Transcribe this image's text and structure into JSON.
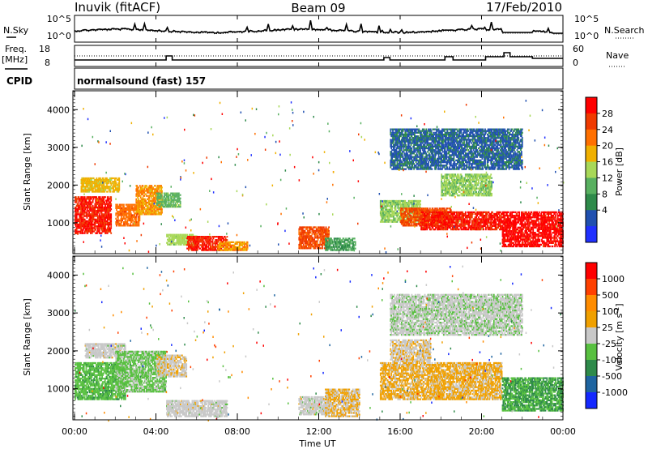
{
  "header": {
    "station": "Inuvik (fitACF)",
    "beam": "Beam 09",
    "date": "17/Feb/2010"
  },
  "status_panels": {
    "nsky_label": "N.Sky",
    "nsearch_label": "N.Search",
    "noise_ticks_left": [
      "10^5",
      "10^0"
    ],
    "noise_ticks_right": [
      "10^5",
      "10^0"
    ],
    "freq_label_1": "Freq.",
    "freq_label_2": "[MHz]",
    "freq_ticks": [
      "18",
      "8"
    ],
    "nave_label": "Nave",
    "nave_ticks": [
      "60",
      "0"
    ],
    "cpid_label": "CPID",
    "cpid_text": "normalsound (fast) 157"
  },
  "chart_data": [
    {
      "type": "heatmap",
      "name": "power",
      "ylabel": "Slant Range [km]",
      "xlabel": "Time UT",
      "x_ticks": [
        "00:00",
        "04:00",
        "08:00",
        "12:00",
        "16:00",
        "20:00",
        "00:00"
      ],
      "xlim_hours": [
        0,
        24
      ],
      "ylim_km": [
        180,
        4500
      ],
      "y_ticks": [
        1000,
        2000,
        3000,
        4000
      ],
      "colorbar": {
        "label": "Power [dB]",
        "ticks": [
          "4",
          "8",
          "12",
          "16",
          "20",
          "24",
          "28"
        ],
        "colors": [
          "#2030ff",
          "#2050b0",
          "#2e8a4a",
          "#58b060",
          "#a8d858",
          "#f0b000",
          "#ff7000",
          "#f03a00",
          "#ff0000"
        ],
        "range": [
          0,
          30
        ]
      },
      "scatter_regions": [
        {
          "t": [
            0.0,
            1.8
          ],
          "r": [
            700,
            1700
          ],
          "v": 27
        },
        {
          "t": [
            0.3,
            2.2
          ],
          "r": [
            1800,
            2200
          ],
          "v": 18
        },
        {
          "t": [
            2.0,
            3.2
          ],
          "r": [
            900,
            1500
          ],
          "v": 22
        },
        {
          "t": [
            3.0,
            4.3
          ],
          "r": [
            1200,
            2000
          ],
          "v": 20
        },
        {
          "t": [
            4.0,
            5.2
          ],
          "r": [
            1400,
            1800
          ],
          "v": 12
        },
        {
          "t": [
            4.5,
            6.0
          ],
          "r": [
            400,
            700
          ],
          "v": 15
        },
        {
          "t": [
            5.5,
            7.5
          ],
          "r": [
            250,
            650
          ],
          "v": 27
        },
        {
          "t": [
            7.0,
            8.5
          ],
          "r": [
            250,
            500
          ],
          "v": 20
        },
        {
          "t": [
            11.0,
            12.5
          ],
          "r": [
            300,
            900
          ],
          "v": 24
        },
        {
          "t": [
            12.3,
            13.8
          ],
          "r": [
            250,
            600
          ],
          "v": 10
        },
        {
          "t": [
            15.0,
            17.0
          ],
          "r": [
            1000,
            1600
          ],
          "v": 14
        },
        {
          "t": [
            16.0,
            18.5
          ],
          "r": [
            900,
            1400
          ],
          "v": 24
        },
        {
          "t": [
            17.0,
            21.0
          ],
          "r": [
            800,
            1300
          ],
          "v": 27
        },
        {
          "t": [
            18.0,
            20.5
          ],
          "r": [
            1700,
            2300
          ],
          "v": 14
        },
        {
          "t": [
            21.0,
            24.0
          ],
          "r": [
            350,
            1300
          ],
          "v": 28
        },
        {
          "t": [
            15.5,
            22.0
          ],
          "r": [
            2400,
            3500
          ],
          "v": 6
        }
      ]
    },
    {
      "type": "heatmap",
      "name": "velocity",
      "ylabel": "Slant Range [km]",
      "xlabel": "Time UT",
      "x_ticks": [
        "00:00",
        "04:00",
        "08:00",
        "12:00",
        "16:00",
        "20:00",
        "00:00"
      ],
      "xlim_hours": [
        0,
        24
      ],
      "ylim_km": [
        180,
        4500
      ],
      "y_ticks": [
        1000,
        2000,
        3000,
        4000
      ],
      "colorbar": {
        "label": "Velocity [m s^-1]",
        "ticks": [
          "1000",
          "500",
          "100",
          "25",
          "-25",
          "-100",
          "-500",
          "-1000"
        ],
        "colors": [
          "#1428ff",
          "#1e64a0",
          "#2e8a4a",
          "#58c040",
          "#c8c8c8",
          "#f0a000",
          "#ff8c00",
          "#ff4000",
          "#ff0000"
        ],
        "range": [
          -1200,
          1200
        ]
      },
      "scatter_regions": [
        {
          "t": [
            0.0,
            2.5
          ],
          "r": [
            700,
            1700
          ],
          "v": -300
        },
        {
          "t": [
            0.5,
            2.5
          ],
          "r": [
            1800,
            2200
          ],
          "v": 0
        },
        {
          "t": [
            2.0,
            4.5
          ],
          "r": [
            900,
            2000
          ],
          "v": -200
        },
        {
          "t": [
            4.0,
            5.5
          ],
          "r": [
            1300,
            1900
          ],
          "v": 80
        },
        {
          "t": [
            4.5,
            7.5
          ],
          "r": [
            250,
            700
          ],
          "v": 0
        },
        {
          "t": [
            11.0,
            12.5
          ],
          "r": [
            300,
            800
          ],
          "v": 0
        },
        {
          "t": [
            12.3,
            14.0
          ],
          "r": [
            250,
            1000
          ],
          "v": 150
        },
        {
          "t": [
            15.0,
            21.0
          ],
          "r": [
            700,
            1700
          ],
          "v": 200
        },
        {
          "t": [
            15.5,
            17.5
          ],
          "r": [
            1700,
            2300
          ],
          "v": 80
        },
        {
          "t": [
            21.0,
            24.0
          ],
          "r": [
            400,
            1300
          ],
          "v": -400
        },
        {
          "t": [
            15.5,
            22.0
          ],
          "r": [
            2400,
            3500
          ],
          "v": -60
        }
      ]
    }
  ]
}
